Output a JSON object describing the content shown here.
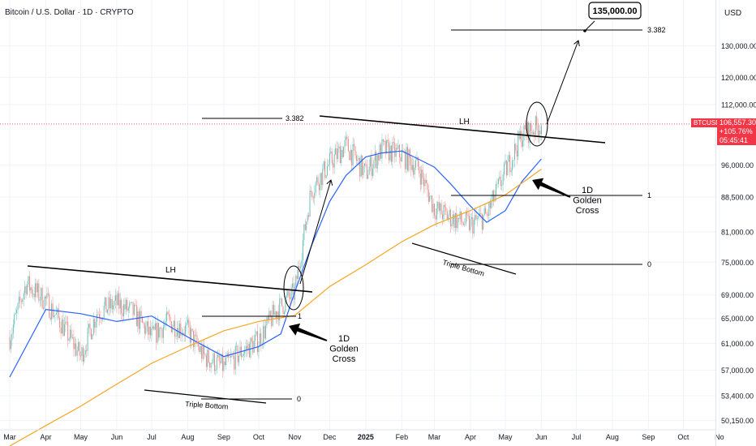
{
  "header": {
    "title": "Bitcoin / U.S. Dollar · 1D · CRYPTO",
    "currency": "USD"
  },
  "price_tags": {
    "symbol": "BTCUSD",
    "price": "106,557.30",
    "change": "+105.76%",
    "countdown": "05:45:41"
  },
  "colors": {
    "candle_up": "#26a69a",
    "candle_down": "#ef5350",
    "ma_fast": "#2962ff",
    "ma_slow": "#f5a623",
    "price_line": "#f23645"
  },
  "chart_data": {
    "type": "candlestick",
    "title": "Bitcoin / U.S. Dollar · 1D · CRYPTO",
    "y_scale": "log",
    "ylim": [
      49500,
      150000
    ],
    "y_ticks": [
      "130,000.00",
      "120,000.00",
      "112,000.00",
      "96,000.00",
      "88,500.00",
      "81,000.00",
      "75,000.00",
      "69,000.00",
      "65,000.00",
      "61,000.00",
      "57,000.00",
      "53,400.00",
      "50,150.00"
    ],
    "x_ticks": [
      "Mar",
      "Apr",
      "May",
      "Jun",
      "Jul",
      "Aug",
      "Sep",
      "Oct",
      "Nov",
      "Dec",
      "2025",
      "Feb",
      "Mar",
      "Apr",
      "May",
      "Jun",
      "Jul",
      "Aug",
      "Sep",
      "Oct",
      "No"
    ],
    "last_price": 106557.3,
    "series": [
      {
        "name": "BTCUSD",
        "type": "candlestick",
        "x": [
          "2024-03-01",
          "2024-03-15",
          "2024-04-01",
          "2024-04-15",
          "2024-05-01",
          "2024-05-15",
          "2024-06-01",
          "2024-06-15",
          "2024-07-01",
          "2024-07-15",
          "2024-08-01",
          "2024-08-15",
          "2024-09-01",
          "2024-09-15",
          "2024-10-01",
          "2024-10-15",
          "2024-11-01",
          "2024-11-15",
          "2024-12-01",
          "2024-12-15",
          "2025-01-01",
          "2025-01-15",
          "2025-02-01",
          "2025-02-15",
          "2025-03-01",
          "2025-03-15",
          "2025-04-01",
          "2025-04-15",
          "2025-05-01",
          "2025-05-15",
          "2025-06-01"
        ],
        "close": [
          62000,
          71000,
          68000,
          64000,
          59000,
          66000,
          67500,
          66000,
          62000,
          64500,
          63000,
          59000,
          57500,
          59500,
          61500,
          66000,
          69500,
          90000,
          96500,
          101000,
          94000,
          100000,
          98500,
          95500,
          86000,
          84000,
          82500,
          84500,
          94500,
          103500,
          106557
        ]
      },
      {
        "name": "Moving average (fast)",
        "type": "line",
        "x": [
          "2024-03-01",
          "2024-04-01",
          "2024-05-01",
          "2024-06-01",
          "2024-07-01",
          "2024-08-01",
          "2024-09-01",
          "2024-10-01",
          "2024-10-20",
          "2024-11-01",
          "2024-11-15",
          "2024-12-01",
          "2024-12-15",
          "2025-01-01",
          "2025-01-15",
          "2025-02-01",
          "2025-02-15",
          "2025-03-01",
          "2025-03-15",
          "2025-04-01",
          "2025-04-15",
          "2025-05-01",
          "2025-05-15",
          "2025-06-01"
        ],
        "values": [
          56000,
          66500,
          65800,
          64500,
          65400,
          62000,
          59000,
          60500,
          62500,
          69500,
          78000,
          87500,
          93500,
          98000,
          99000,
          99500,
          97500,
          95500,
          91500,
          86500,
          83000,
          85500,
          92000,
          97500
        ]
      },
      {
        "name": "Moving average (slow)",
        "type": "line",
        "x": [
          "2024-03-01",
          "2024-04-01",
          "2024-05-01",
          "2024-06-01",
          "2024-07-01",
          "2024-08-01",
          "2024-09-01",
          "2024-10-01",
          "2024-11-01",
          "2024-12-01",
          "2025-01-01",
          "2025-02-01",
          "2025-03-01",
          "2025-04-01",
          "2025-05-01",
          "2025-06-01"
        ],
        "values": [
          47000,
          49500,
          52000,
          55000,
          58000,
          60500,
          63000,
          64500,
          65500,
          70500,
          74500,
          79000,
          82500,
          85500,
          89000,
          95000
        ]
      }
    ],
    "annotations": {
      "target_label": "135,000.00",
      "fib_labels": [
        "3.382",
        "1",
        "0",
        "3.382",
        "1",
        "0"
      ],
      "lh_labels": [
        "LH",
        "LH"
      ],
      "triple_bottom_labels": [
        "Triple Bottom",
        "Triple Bottom"
      ],
      "golden_cross_labels": [
        [
          "1D",
          "Golden",
          "Cross"
        ],
        [
          "1D",
          "Golden",
          "Cross"
        ]
      ]
    }
  }
}
